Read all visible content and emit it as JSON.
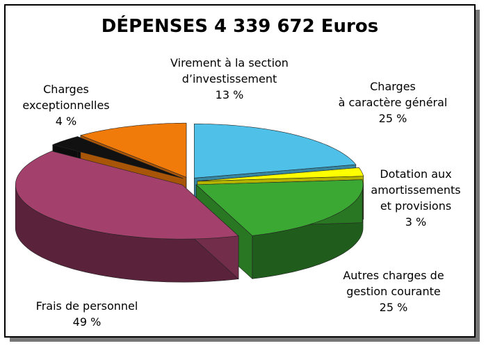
{
  "chart_data": {
    "type": "pie",
    "title": "DÉPENSES 4 339 672 Euros",
    "categories": [
      [
        "Charges",
        "à caractère général"
      ],
      [
        "Dotation aux",
        "amortissements",
        "et provisions"
      ],
      [
        "Autres charges de",
        "gestion courante"
      ],
      [
        "Frais de personnel"
      ],
      [
        "Charges",
        "exceptionnelles"
      ],
      [
        "Virement à la section",
        "d’investissement"
      ]
    ],
    "values": [
      25,
      3,
      25,
      49,
      4,
      13
    ],
    "value_labels": [
      "25 %",
      "3 %",
      "25 %",
      "49 %",
      "4 %",
      "13 %"
    ],
    "colors": [
      "#4fc0e8",
      "#ffff00",
      "#3aa832",
      "#a3406b",
      "#111111",
      "#f07a0a"
    ]
  }
}
